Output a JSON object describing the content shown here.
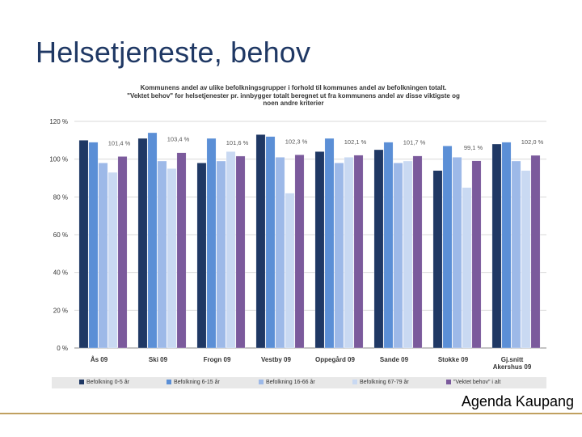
{
  "slide": {
    "title": "Helsetjeneste, behov",
    "footer": "Agenda Kaupang"
  },
  "colors": {
    "series": [
      "#1f3864",
      "#5b8fd6",
      "#9db9e8",
      "#c9d9f2",
      "#7b5a9c"
    ],
    "grid": "#d9d9d9",
    "axis_text": "#333333"
  },
  "chart_data": {
    "type": "bar",
    "title_lines": [
      "Kommunens andel av ulike befolkningsgrupper i forhold til kommunes andel av befolkningen totalt.",
      "\"Vektet behov\" for helsetjenester pr. innbygger totalt beregnet ut fra kommunens andel av disse viktigste og",
      "noen andre kriterier"
    ],
    "categories": [
      "Ås 09",
      "Ski 09",
      "Frogn 09",
      "Vestby 09",
      "Oppegård 09",
      "Sande 09",
      "Stokke 09",
      "Gj.snitt|Akershus 09"
    ],
    "series": [
      {
        "name": "Befolkning 0-5 år",
        "values": [
          110,
          111,
          98,
          113,
          104,
          105,
          94,
          108
        ]
      },
      {
        "name": "Befolkning 6-15 år",
        "values": [
          109,
          114,
          111,
          112,
          111,
          109,
          107,
          109
        ]
      },
      {
        "name": "Befolkning 16-66 år",
        "values": [
          98,
          99,
          99,
          101,
          98,
          98,
          101,
          99
        ]
      },
      {
        "name": "Befolkning 67-79 år",
        "values": [
          93,
          95,
          104,
          82,
          101,
          99,
          85,
          94
        ]
      },
      {
        "name": "\"Vektet behov\" i alt",
        "values": [
          101.4,
          103.4,
          101.6,
          102.3,
          102.1,
          101.7,
          99.1,
          102.0
        ]
      }
    ],
    "data_labels": [
      "101,4 %",
      "103,4 %",
      "101,6 %",
      "102,3 %",
      "102,1 %",
      "101,7 %",
      "99,1 %",
      "102,0 %"
    ],
    "y_ticks": [
      0,
      20,
      40,
      60,
      80,
      100,
      120
    ],
    "y_tick_labels": [
      "0 %",
      "20 %",
      "40 %",
      "60 %",
      "80 %",
      "100 %",
      "120 %"
    ],
    "ylim": [
      0,
      120
    ],
    "grid": true,
    "legend_position": "bottom"
  }
}
